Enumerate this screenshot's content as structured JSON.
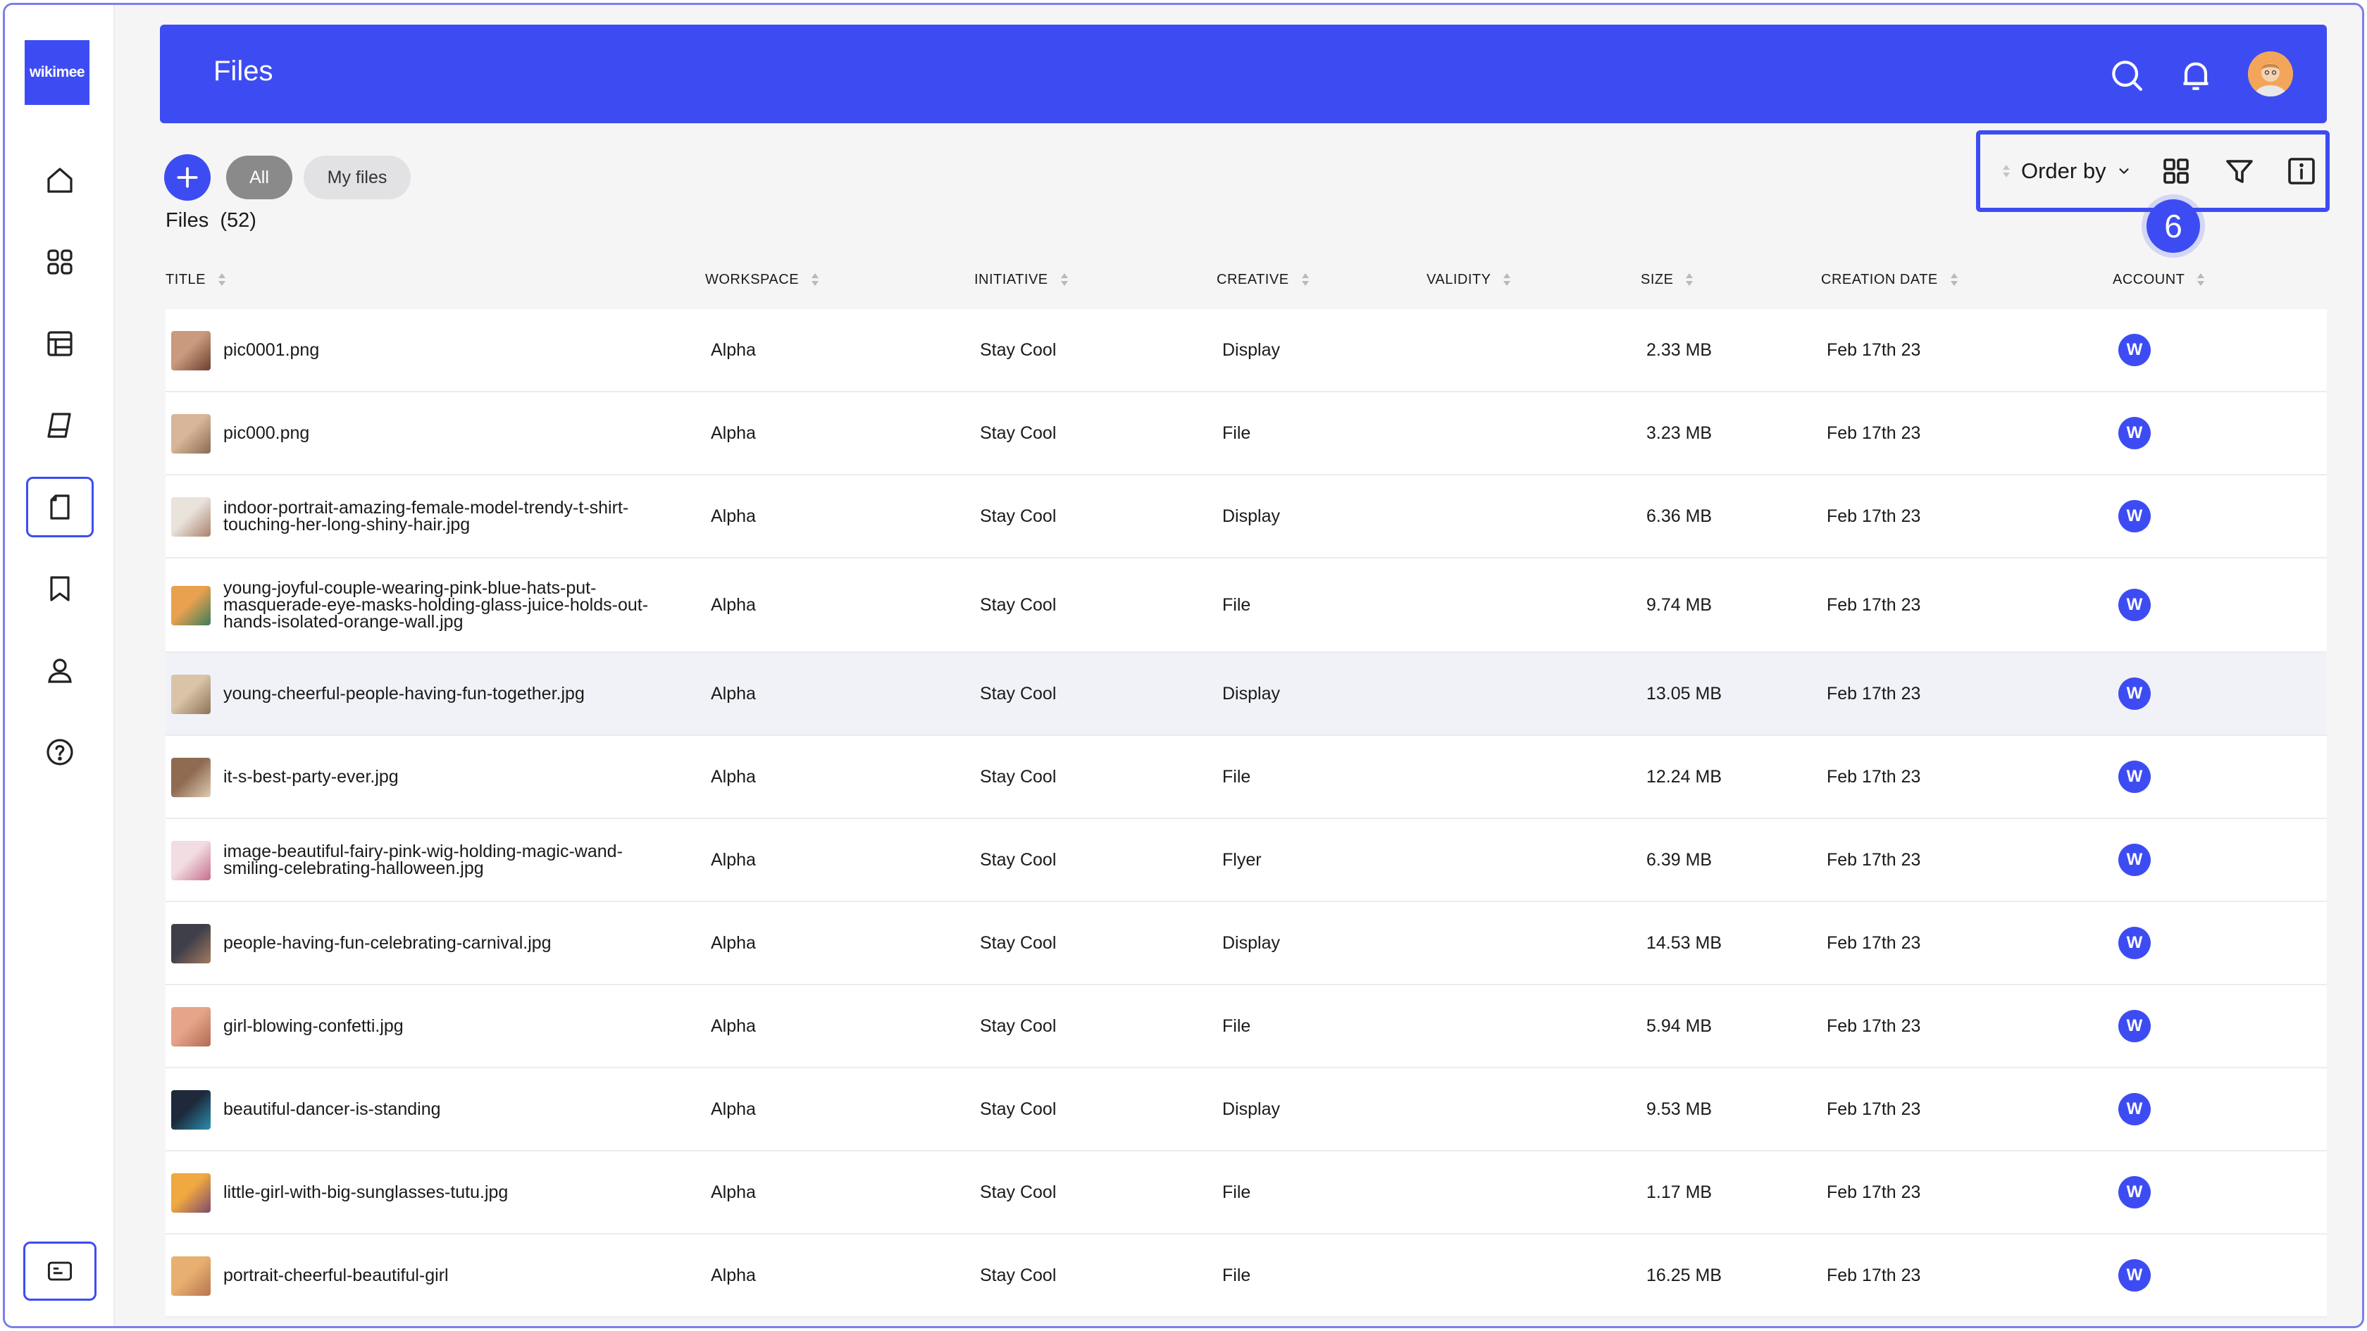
{
  "brand": {
    "logo_text": "wikimee"
  },
  "header": {
    "title": "Files"
  },
  "toolbar": {
    "filters": [
      "All",
      "My files"
    ],
    "files_label": "Files",
    "files_count": "(52)",
    "order_by_label": "Order by",
    "step_badge": "6"
  },
  "sidebar": {
    "items": [
      {
        "name": "home",
        "icon": "home-icon"
      },
      {
        "name": "dashboard",
        "icon": "grid-icon"
      },
      {
        "name": "layouts",
        "icon": "layout-icon"
      },
      {
        "name": "stacks",
        "icon": "stack-icon"
      },
      {
        "name": "files",
        "icon": "file-icon",
        "active": true
      },
      {
        "name": "bookmarks",
        "icon": "bookmark-icon"
      },
      {
        "name": "account",
        "icon": "user-icon"
      },
      {
        "name": "help",
        "icon": "help-icon"
      }
    ]
  },
  "table": {
    "columns": [
      "TITLE",
      "WORKSPACE",
      "INITIATIVE",
      "CREATIVE",
      "VALIDITY",
      "SIZE",
      "CREATION DATE",
      "ACCOUNT"
    ],
    "rows": [
      {
        "title": [
          "pic0001.png"
        ],
        "workspace": "Alpha",
        "initiative": "Stay Cool",
        "creative": "Display",
        "validity": "",
        "size": "2.33 MB",
        "date": "Feb 17th 23",
        "account": "W"
      },
      {
        "title": [
          "pic000.png"
        ],
        "workspace": "Alpha",
        "initiative": "Stay Cool",
        "creative": "File",
        "validity": "",
        "size": "3.23 MB",
        "date": "Feb 17th 23",
        "account": "W"
      },
      {
        "title": [
          "indoor-portrait-amazing-female-model-trendy-t-shirt-",
          "touching-her-long-shiny-hair.jpg"
        ],
        "workspace": "Alpha",
        "initiative": "Stay Cool",
        "creative": "Display",
        "validity": "",
        "size": "6.36 MB",
        "date": "Feb 17th 23",
        "account": "W"
      },
      {
        "title": [
          "young-joyful-couple-wearing-pink-blue-hats-put-",
          "masquerade-eye-masks-holding-glass-juice-holds-out-",
          "hands-isolated-orange-wall.jpg"
        ],
        "workspace": "Alpha",
        "initiative": "Stay Cool",
        "creative": "File",
        "validity": "",
        "size": "9.74 MB",
        "date": "Feb 17th 23",
        "account": "W"
      },
      {
        "title": [
          "young-cheerful-people-having-fun-together.jpg"
        ],
        "workspace": "Alpha",
        "initiative": "Stay Cool",
        "creative": "Display",
        "validity": "",
        "size": "13.05 MB",
        "date": "Feb 17th 23",
        "account": "W"
      },
      {
        "title": [
          "it-s-best-party-ever.jpg"
        ],
        "workspace": "Alpha",
        "initiative": "Stay Cool",
        "creative": "File",
        "validity": "",
        "size": "12.24 MB",
        "date": "Feb 17th 23",
        "account": "W"
      },
      {
        "title": [
          "image-beautiful-fairy-pink-wig-holding-magic-wand-",
          "smiling-celebrating-halloween.jpg"
        ],
        "workspace": "Alpha",
        "initiative": "Stay Cool",
        "creative": "Flyer",
        "validity": "",
        "size": "6.39 MB",
        "date": "Feb 17th 23",
        "account": "W"
      },
      {
        "title": [
          "people-having-fun-celebrating-carnival.jpg"
        ],
        "workspace": "Alpha",
        "initiative": "Stay Cool",
        "creative": "Display",
        "validity": "",
        "size": "14.53 MB",
        "date": "Feb 17th 23",
        "account": "W"
      },
      {
        "title": [
          "girl-blowing-confetti.jpg"
        ],
        "workspace": "Alpha",
        "initiative": "Stay Cool",
        "creative": "File",
        "validity": "",
        "size": "5.94 MB",
        "date": "Feb 17th 23",
        "account": "W"
      },
      {
        "title": [
          "beautiful-dancer-is-standing"
        ],
        "workspace": "Alpha",
        "initiative": "Stay Cool",
        "creative": "Display",
        "validity": "",
        "size": "9.53 MB",
        "date": "Feb 17th 23",
        "account": "W"
      },
      {
        "title": [
          "little-girl-with-big-sunglasses-tutu.jpg"
        ],
        "workspace": "Alpha",
        "initiative": "Stay Cool",
        "creative": "File",
        "validity": "",
        "size": "1.17 MB",
        "date": "Feb 17th 23",
        "account": "W"
      },
      {
        "title": [
          "portrait-cheerful-beautiful-girl"
        ],
        "workspace": "Alpha",
        "initiative": "Stay Cool",
        "creative": "File",
        "validity": "",
        "size": "16.25 MB",
        "date": "Feb 17th 23",
        "account": "W"
      }
    ]
  },
  "colors": {
    "accent": "#3d4cf2",
    "background": "#f5f5f6",
    "row": "#ffffff",
    "row_hover": "#f1f2f7"
  }
}
